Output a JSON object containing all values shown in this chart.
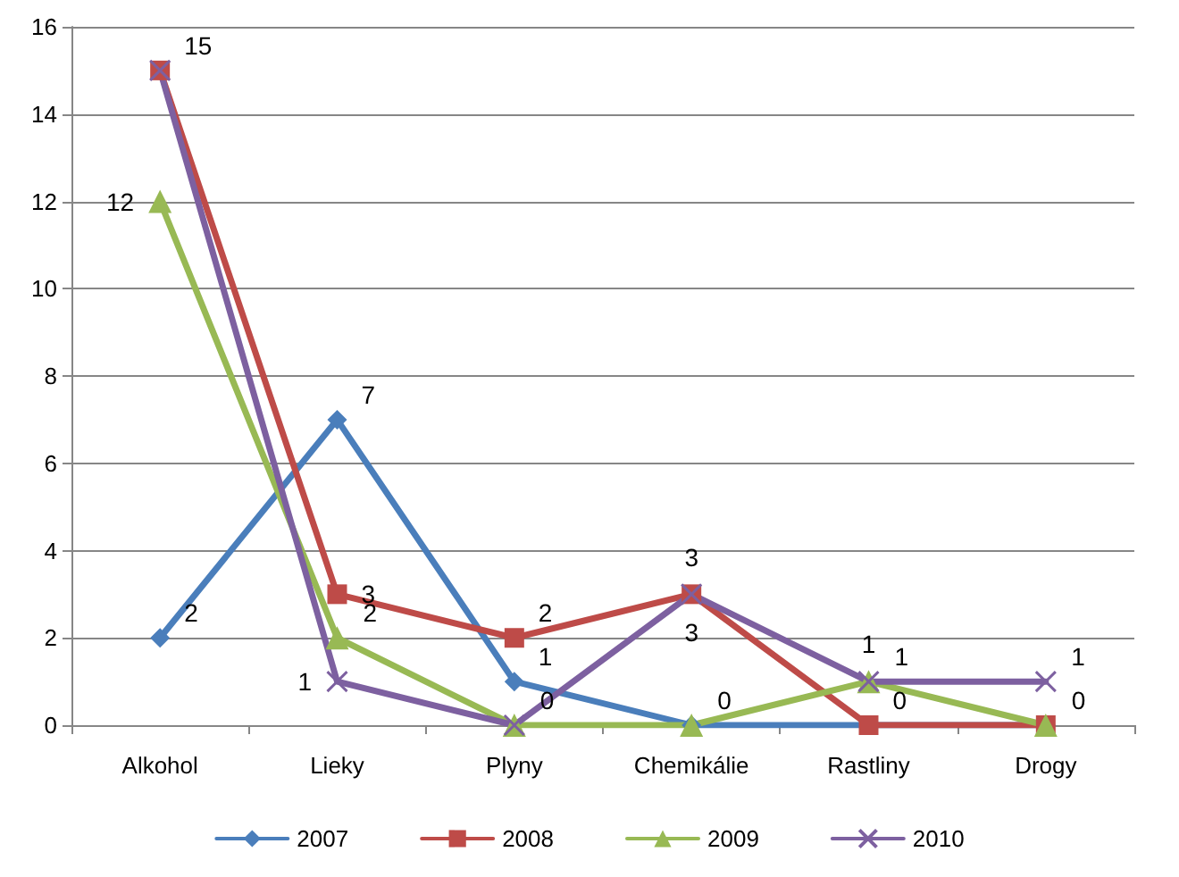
{
  "chart_data": {
    "type": "line",
    "categories": [
      "Alkohol",
      "Lieky",
      "Plyny",
      "Chemikálie",
      "Rastliny",
      "Drogy"
    ],
    "series": [
      {
        "name": "2007",
        "color": "#4a7ebb",
        "marker": "diamond",
        "values": [
          2,
          7,
          1,
          0,
          0,
          0
        ],
        "value_labels": [
          "2",
          "7",
          "1",
          null,
          null,
          null
        ]
      },
      {
        "name": "2008",
        "color": "#be4b48",
        "marker": "square",
        "values": [
          15,
          3,
          2,
          3,
          0,
          0
        ],
        "value_labels": [
          "15",
          "3",
          "2",
          "3",
          "0",
          null
        ]
      },
      {
        "name": "2009",
        "color": "#98b954",
        "marker": "triangle",
        "values": [
          12,
          2,
          0,
          0,
          1,
          0
        ],
        "value_labels": [
          "12",
          "2",
          "0",
          "0",
          "1",
          "0"
        ]
      },
      {
        "name": "2010",
        "color": "#7d60a0",
        "marker": "cross",
        "values": [
          15,
          1,
          0,
          3,
          1,
          1
        ],
        "value_labels": [
          null,
          "1",
          null,
          "3",
          "1",
          "1"
        ]
      }
    ],
    "ylim": [
      0,
      16
    ],
    "yticks": [
      0,
      2,
      4,
      6,
      8,
      10,
      12,
      14,
      16
    ],
    "grid": "y",
    "legend": "bottom"
  }
}
